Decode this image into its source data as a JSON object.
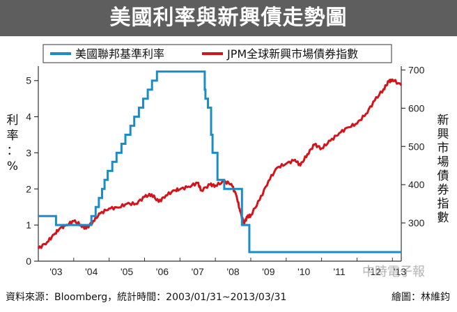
{
  "title": "美國利率與新興債走勢圖",
  "legend": [
    {
      "label": "美國聯邦基準利率",
      "color": "#1b8cc4"
    },
    {
      "label": "JPM全球新興市場債券指數",
      "color": "#d3141b"
    }
  ],
  "left_axis_label": [
    "利",
    "率",
    "：",
    "%"
  ],
  "right_axis_label": [
    "新",
    "興",
    "市",
    "場",
    "債",
    "券",
    "指",
    "數"
  ],
  "footer": {
    "source": "資料來源：Bloomberg，統計時間：2003/01/31~2013/03/31",
    "credit": "繪圖：林維鈞"
  },
  "watermark": "中時電子報",
  "chart_data": {
    "type": "line",
    "title": "美國利率與新興債走勢圖",
    "xlabel": "",
    "x_ticks": [
      "'03",
      "'04",
      "'05",
      "'06",
      "'07",
      "'08",
      "'09",
      "'10",
      "'11",
      "'12",
      "'13"
    ],
    "xlim": [
      2003.0,
      2013.25
    ],
    "left_axis": {
      "label": "利率：%",
      "ylim": [
        0,
        5.4
      ],
      "ticks": [
        "0",
        "1",
        "2",
        "3",
        "4",
        "5"
      ],
      "tick_values": [
        0,
        1,
        2,
        3,
        4,
        5
      ]
    },
    "right_axis": {
      "label": "新興市場債券指數",
      "ylim": [
        200,
        710
      ],
      "ticks": [
        "700",
        "600",
        "500",
        "400",
        "300"
      ],
      "tick_values": [
        700,
        600,
        500,
        400,
        300
      ]
    },
    "legend_position": "top",
    "grid": false,
    "series": [
      {
        "name": "美國聯邦基準利率",
        "axis": "left",
        "color": "#1b8cc4",
        "x": [
          2003.0,
          2003.5,
          2004.5,
          2004.62,
          2004.71,
          2004.8,
          2004.87,
          2004.96,
          2005.09,
          2005.21,
          2005.35,
          2005.46,
          2005.6,
          2005.71,
          2005.84,
          2005.96,
          2006.09,
          2006.21,
          2006.35,
          2006.47,
          2007.7,
          2007.72,
          2007.79,
          2007.88,
          2007.92,
          2008.06,
          2008.25,
          2008.3,
          2008.75,
          2008.82,
          2008.96,
          2013.25
        ],
        "y": [
          1.25,
          1.0,
          1.25,
          1.5,
          1.75,
          2.0,
          2.25,
          2.5,
          2.75,
          3.0,
          3.25,
          3.5,
          3.75,
          4.0,
          4.25,
          4.5,
          4.75,
          5.0,
          5.25,
          5.25,
          4.75,
          4.5,
          4.25,
          3.5,
          3.0,
          2.25,
          2.0,
          2.0,
          1.0,
          1.0,
          0.25,
          0.25
        ]
      },
      {
        "name": "JPM全球新興市場債券指數",
        "axis": "right",
        "color": "#d3141b",
        "x": [
          2003.0,
          2003.25,
          2003.45,
          2003.6,
          2003.8,
          2004.0,
          2004.2,
          2004.35,
          2004.55,
          2004.75,
          2005.0,
          2005.25,
          2005.5,
          2005.75,
          2006.0,
          2006.2,
          2006.4,
          2006.6,
          2006.85,
          2007.0,
          2007.25,
          2007.5,
          2007.6,
          2007.85,
          2008.0,
          2008.25,
          2008.45,
          2008.6,
          2008.7,
          2008.8,
          2008.9,
          2009.0,
          2009.25,
          2009.5,
          2009.75,
          2010.0,
          2010.25,
          2010.4,
          2010.6,
          2010.8,
          2011.0,
          2011.25,
          2011.5,
          2011.75,
          2012.0,
          2012.25,
          2012.5,
          2012.75,
          2012.9,
          2013.0,
          2013.25
        ],
        "y": [
          233,
          250,
          270,
          285,
          295,
          305,
          295,
          285,
          305,
          325,
          338,
          340,
          350,
          350,
          368,
          375,
          355,
          372,
          385,
          388,
          395,
          405,
          385,
          400,
          398,
          408,
          402,
          370,
          330,
          300,
          315,
          320,
          360,
          410,
          445,
          455,
          465,
          450,
          480,
          505,
          495,
          515,
          535,
          550,
          560,
          585,
          620,
          650,
          670,
          675,
          660
        ]
      }
    ]
  }
}
